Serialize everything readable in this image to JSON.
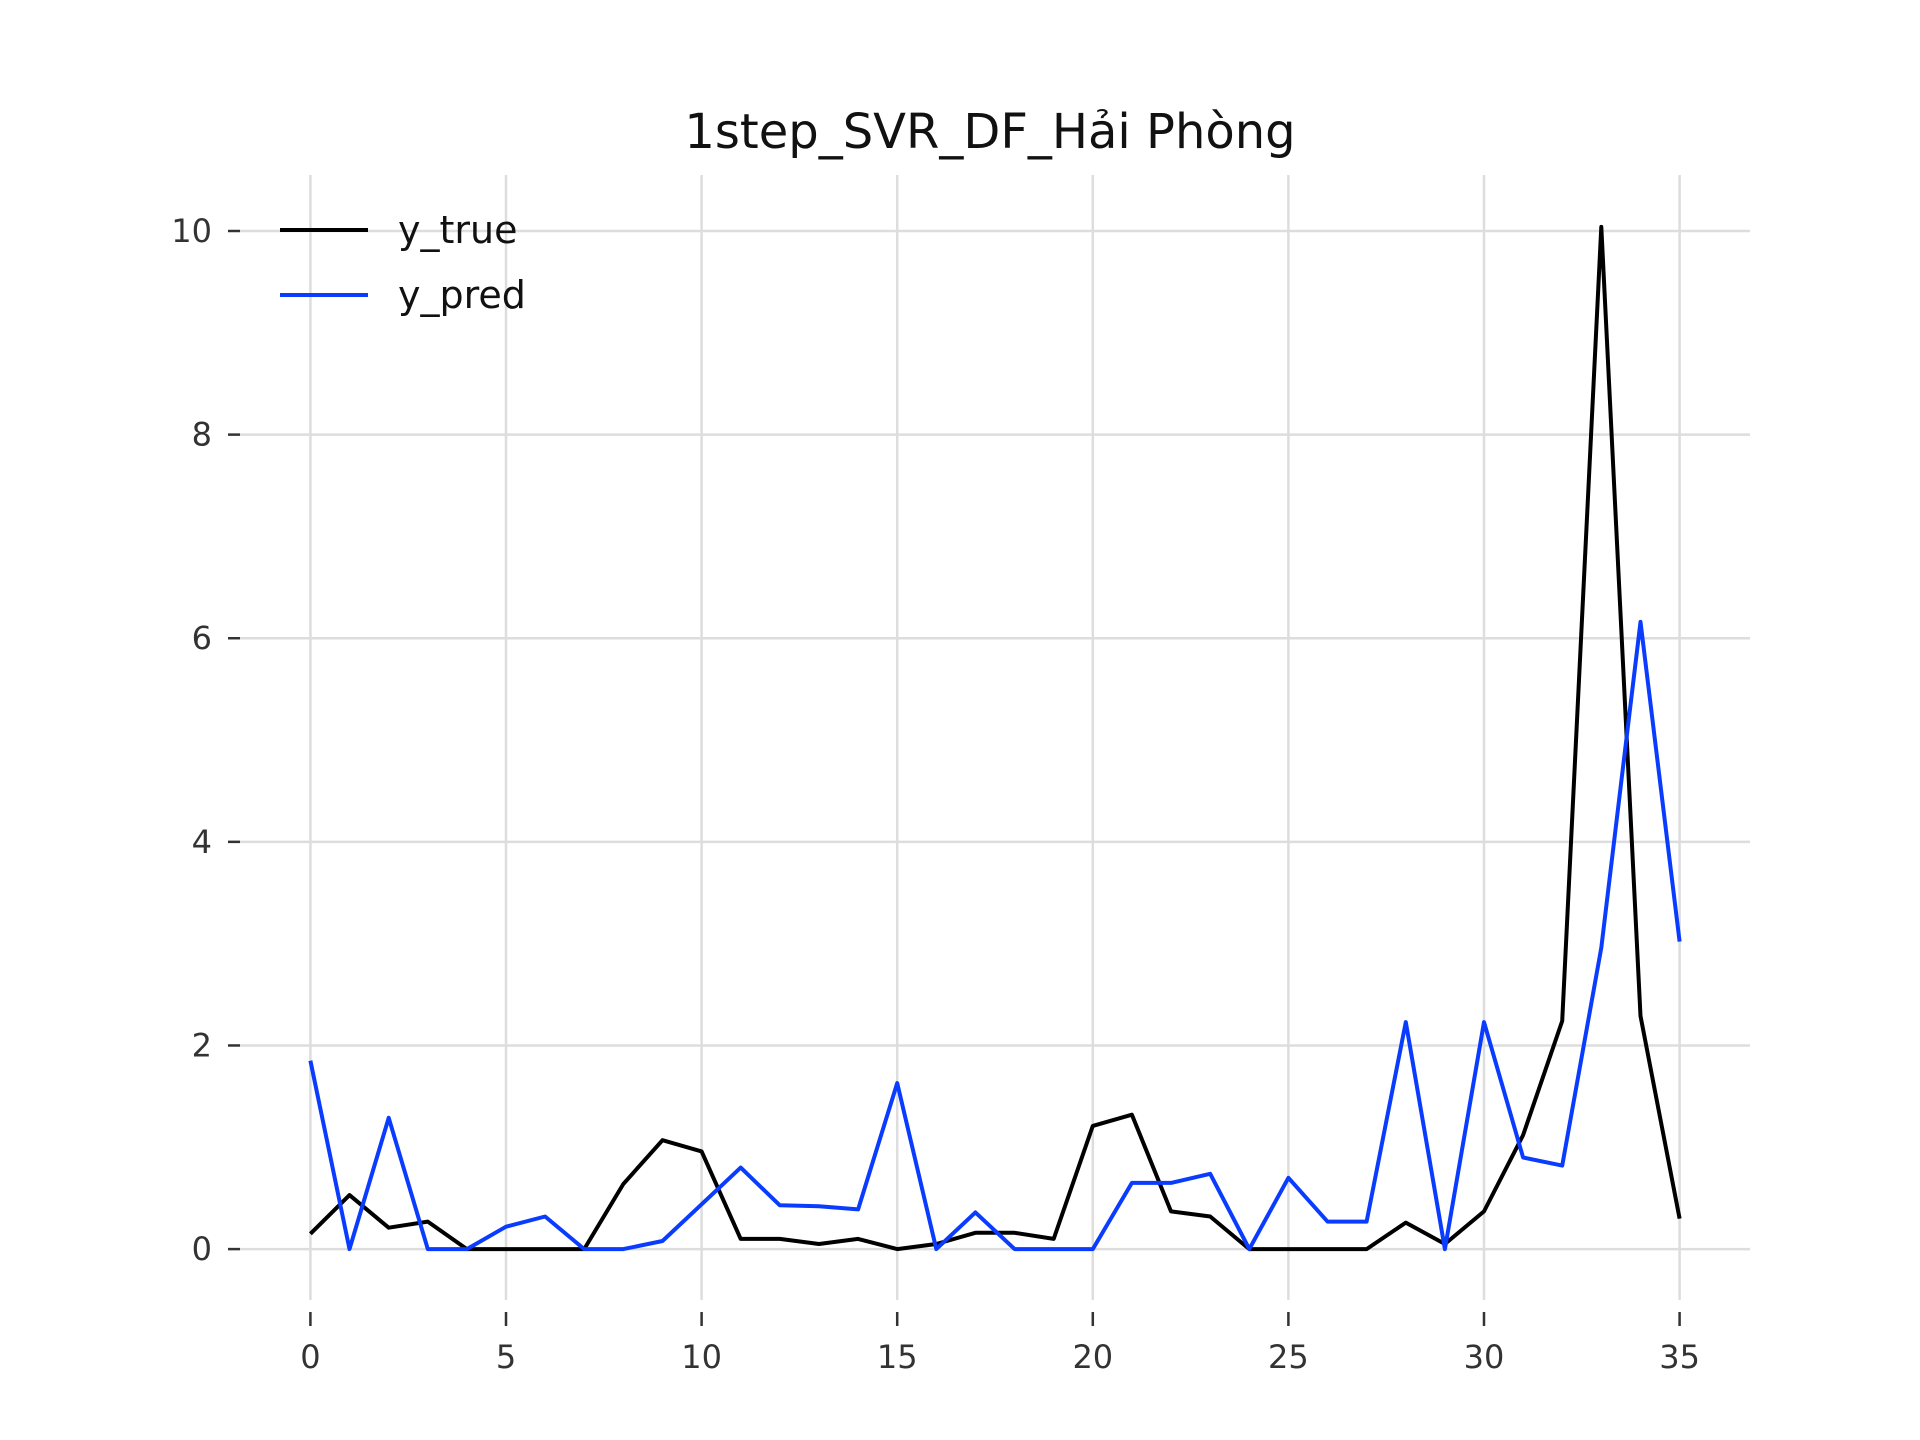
{
  "chart_data": {
    "type": "line",
    "title": "1step_SVR_DF_Hải Phòng",
    "xlabel": "",
    "ylabel": "",
    "xlim": [
      -1.8,
      36.8
    ],
    "ylim": [
      -0.5,
      10.55
    ],
    "x_ticks": [
      0,
      5,
      10,
      15,
      20,
      25,
      30,
      35
    ],
    "y_ticks": [
      0,
      2,
      4,
      6,
      8,
      10
    ],
    "grid": true,
    "legend_position": "top-left",
    "x": [
      0,
      1,
      2,
      3,
      4,
      5,
      6,
      7,
      8,
      9,
      10,
      11,
      12,
      13,
      14,
      15,
      16,
      17,
      18,
      19,
      20,
      21,
      22,
      23,
      24,
      25,
      26,
      27,
      28,
      29,
      30,
      31,
      32,
      33,
      34,
      35
    ],
    "series": [
      {
        "name": "y_true",
        "color": "#000000",
        "values": [
          0.15,
          0.53,
          0.21,
          0.27,
          0.0,
          0.0,
          0.0,
          0.0,
          0.64,
          1.07,
          0.96,
          0.1,
          0.1,
          0.05,
          0.1,
          0.0,
          0.05,
          0.16,
          0.16,
          0.1,
          1.21,
          1.32,
          0.37,
          0.32,
          0.0,
          0.0,
          0.0,
          0.0,
          0.26,
          0.05,
          0.37,
          1.12,
          2.24,
          10.04,
          2.29,
          0.3
        ]
      },
      {
        "name": "y_pred",
        "color": "#0a3cff",
        "values": [
          1.85,
          0.0,
          1.29,
          0.0,
          0.0,
          0.22,
          0.32,
          0.0,
          0.0,
          0.08,
          0.44,
          0.8,
          0.43,
          0.42,
          0.39,
          1.63,
          0.0,
          0.36,
          0.0,
          0.0,
          0.0,
          0.65,
          0.65,
          0.74,
          0.0,
          0.7,
          0.27,
          0.27,
          2.23,
          0.0,
          2.23,
          0.9,
          0.82,
          2.96,
          6.16,
          3.02
        ]
      }
    ]
  }
}
